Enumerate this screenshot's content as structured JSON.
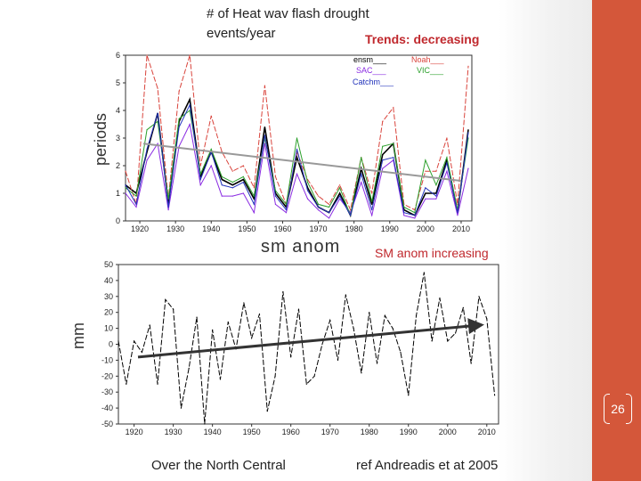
{
  "slide": {
    "top_title": "# of Heat wav flash drought",
    "top_title_line2": "events/year",
    "top_note": "Trends: decreasing",
    "bottom_title": "sm  anom",
    "bottom_note": "SM anom increasing",
    "footer_left": "Over the North Central",
    "footer_right": "ref Andreadis et at 2005",
    "page_number": "26",
    "colors": {
      "accent_band": "#d4573a",
      "note_red": "#c0282d"
    }
  },
  "chart_data": [
    {
      "type": "line",
      "ylabel": "periods",
      "xlim": [
        1916,
        2013
      ],
      "ylim": [
        0,
        6
      ],
      "xticks": [
        "1920",
        "1930",
        "1940",
        "1950",
        "1960",
        "1970",
        "1980",
        "1990",
        "2000",
        "2010"
      ],
      "yticks": [
        "0",
        "1",
        "2",
        "3",
        "4",
        "5",
        "6"
      ],
      "legend_placement": "top-right",
      "x": [
        1916,
        1919,
        1922,
        1925,
        1928,
        1931,
        1934,
        1937,
        1940,
        1943,
        1946,
        1949,
        1952,
        1955,
        1958,
        1961,
        1964,
        1967,
        1970,
        1973,
        1976,
        1979,
        1982,
        1985,
        1988,
        1991,
        1994,
        1997,
        2000,
        2003,
        2006,
        2009,
        2012
      ],
      "series": [
        {
          "name": "ensm___",
          "color": "#000000",
          "values": [
            1.3,
            1.0,
            2.5,
            3.9,
            0.6,
            3.6,
            4.4,
            1.6,
            2.5,
            1.5,
            1.3,
            1.5,
            0.8,
            3.4,
            1.0,
            0.5,
            2.3,
            1.2,
            0.5,
            0.3,
            1.0,
            0.2,
            1.9,
            0.6,
            2.4,
            2.8,
            0.4,
            0.2,
            1.0,
            1.0,
            2.2,
            0.3,
            3.3
          ]
        },
        {
          "name": "Noah___",
          "color": "#d9443c",
          "dashed": true,
          "values": [
            1.8,
            0.6,
            6.0,
            4.8,
            0.8,
            4.7,
            6.0,
            2.0,
            3.8,
            2.5,
            1.8,
            2.0,
            1.2,
            4.9,
            1.6,
            0.6,
            2.5,
            1.5,
            0.9,
            0.6,
            1.3,
            0.4,
            2.3,
            1.0,
            3.6,
            4.1,
            0.6,
            0.4,
            1.8,
            1.8,
            3.0,
            0.6,
            5.6
          ]
        },
        {
          "name": "SAC___",
          "color": "#8a2be2",
          "values": [
            1.0,
            0.5,
            2.2,
            2.8,
            0.4,
            2.7,
            3.5,
            1.3,
            2.0,
            0.9,
            0.9,
            1.0,
            0.3,
            2.8,
            0.6,
            0.3,
            1.7,
            0.8,
            0.4,
            0.1,
            0.8,
            0.3,
            1.4,
            0.2,
            1.9,
            2.2,
            0.2,
            0.1,
            0.8,
            0.8,
            1.8,
            0.2,
            1.9
          ]
        },
        {
          "name": "VIC___",
          "color": "#2ca02c",
          "values": [
            1.2,
            0.9,
            3.3,
            3.6,
            0.8,
            3.7,
            4.0,
            1.7,
            2.6,
            1.6,
            1.4,
            1.6,
            0.9,
            3.0,
            1.1,
            0.6,
            3.0,
            1.4,
            0.6,
            0.5,
            1.2,
            0.2,
            2.3,
            0.7,
            2.7,
            2.8,
            0.5,
            0.3,
            2.2,
            1.3,
            2.3,
            0.4,
            3.0
          ]
        },
        {
          "name": "Catchm___",
          "color": "#2233bb",
          "values": [
            1.3,
            0.6,
            2.6,
            3.9,
            0.5,
            3.4,
            4.2,
            1.5,
            2.5,
            1.3,
            1.2,
            1.4,
            0.6,
            3.1,
            0.9,
            0.4,
            2.6,
            1.1,
            0.5,
            0.3,
            0.9,
            0.2,
            1.7,
            0.4,
            2.2,
            2.3,
            0.3,
            0.2,
            1.2,
            0.9,
            2.1,
            0.3,
            3.2
          ]
        }
      ],
      "trend": {
        "x": [
          1921,
          2010
        ],
        "y": [
          2.8,
          1.45
        ],
        "color": "#999999"
      }
    },
    {
      "type": "line",
      "ylabel": "mm",
      "xlim": [
        1916,
        2013
      ],
      "ylim": [
        -50,
        50
      ],
      "xticks": [
        "1920",
        "1930",
        "1940",
        "1950",
        "1960",
        "1970",
        "1980",
        "1990",
        "2000",
        "2010"
      ],
      "yticks": [
        "-50",
        "-40",
        "-30",
        "-20",
        "-10",
        "0",
        "10",
        "20",
        "30",
        "40",
        "50"
      ],
      "x": [
        1916,
        1918,
        1920,
        1922,
        1924,
        1926,
        1928,
        1930,
        1932,
        1934,
        1936,
        1938,
        1940,
        1942,
        1944,
        1946,
        1948,
        1950,
        1952,
        1954,
        1956,
        1958,
        1960,
        1962,
        1964,
        1966,
        1968,
        1970,
        1972,
        1974,
        1976,
        1978,
        1980,
        1982,
        1984,
        1986,
        1988,
        1990,
        1992,
        1994,
        1996,
        1998,
        2000,
        2002,
        2004,
        2006,
        2008,
        2010,
        2012
      ],
      "series": [
        {
          "color": "#000000",
          "dashed": true,
          "values": [
            2,
            -25,
            2,
            -5,
            12,
            -25,
            28,
            22,
            -40,
            -15,
            17,
            -50,
            9,
            -22,
            14,
            -3,
            26,
            4,
            19,
            -42,
            -20,
            33,
            -8,
            22,
            -25,
            -20,
            0,
            15,
            -10,
            31,
            10,
            -18,
            20,
            -12,
            18,
            10,
            -5,
            -32,
            18,
            45,
            2,
            29,
            2,
            7,
            23,
            -12,
            30,
            16,
            -32
          ]
        }
      ],
      "trend": {
        "x": [
          1921,
          2008
        ],
        "y": [
          -8,
          12
        ],
        "color": "#333333",
        "arrow": true
      }
    }
  ]
}
